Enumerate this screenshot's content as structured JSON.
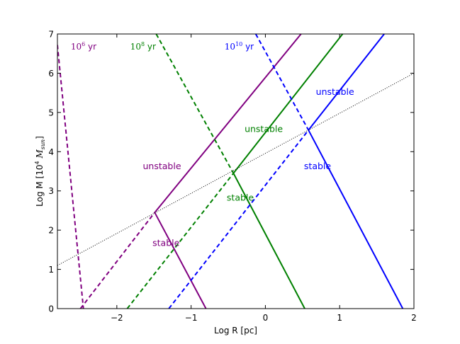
{
  "chart_data": {
    "type": "line",
    "xlabel": "Log R [pc]",
    "ylabel_prefix": "Log M [10",
    "ylabel_exp": "4",
    "ylabel_var": " M",
    "ylabel_sub": "sun",
    "ylabel_suffix": "]",
    "xlim": [
      -2.8,
      2.0
    ],
    "ylim": [
      0,
      7
    ],
    "xticks": [
      -2,
      -1,
      0,
      1,
      2
    ],
    "xtick_labels": [
      "−2",
      "−1",
      "0",
      "1",
      "2"
    ],
    "yticks": [
      0,
      1,
      2,
      3,
      4,
      5,
      6,
      7
    ],
    "ytick_labels": [
      "0",
      "1",
      "2",
      "3",
      "4",
      "5",
      "6",
      "7"
    ],
    "grid": false,
    "series": [
      {
        "group": "1e6",
        "style": "dashed",
        "color": "#800080",
        "x": [
          -2.8,
          -2.45
        ],
        "y": [
          6.72,
          0
        ]
      },
      {
        "group": "1e6",
        "style": "solid",
        "color": "#800080",
        "x": [
          -1.49,
          0.48
        ],
        "y": [
          2.45,
          7.0
        ]
      },
      {
        "group": "1e6",
        "style": "dashed",
        "color": "#800080",
        "x": [
          -2.49,
          -1.49
        ],
        "y": [
          0,
          2.45
        ]
      },
      {
        "group": "1e6",
        "style": "solid",
        "color": "#800080",
        "x": [
          -1.49,
          -0.8
        ],
        "y": [
          2.45,
          0
        ]
      },
      {
        "group": "1e8",
        "style": "dashed",
        "color": "#008000",
        "x": [
          -1.47,
          -0.43
        ],
        "y": [
          7.0,
          3.45
        ]
      },
      {
        "group": "1e8",
        "style": "solid",
        "color": "#008000",
        "x": [
          -0.43,
          1.04
        ],
        "y": [
          3.45,
          7.0
        ]
      },
      {
        "group": "1e8",
        "style": "dashed",
        "color": "#008000",
        "x": [
          -1.86,
          -0.43
        ],
        "y": [
          0,
          3.45
        ]
      },
      {
        "group": "1e8",
        "style": "solid",
        "color": "#008000",
        "x": [
          -0.43,
          0.53
        ],
        "y": [
          3.45,
          0
        ]
      },
      {
        "group": "1e10",
        "style": "dashed",
        "color": "#0000ff",
        "x": [
          -0.13,
          0.58
        ],
        "y": [
          7.0,
          4.55
        ]
      },
      {
        "group": "1e10",
        "style": "solid",
        "color": "#0000ff",
        "x": [
          0.58,
          1.6
        ],
        "y": [
          4.55,
          7.0
        ]
      },
      {
        "group": "1e10",
        "style": "dashed",
        "color": "#0000ff",
        "x": [
          -1.3,
          0.58
        ],
        "y": [
          0,
          4.55
        ]
      },
      {
        "group": "1e10",
        "style": "solid",
        "color": "#0000ff",
        "x": [
          0.58,
          1.85
        ],
        "y": [
          4.55,
          0
        ]
      },
      {
        "group": "reference",
        "style": "dotted",
        "color": "#000000",
        "x": [
          -2.8,
          2.0
        ],
        "y": [
          1.1,
          6.0
        ]
      }
    ],
    "annotations": [
      {
        "group": "1e6",
        "text": "unstable",
        "x": -1.65,
        "y": 3.55,
        "color": "#800080"
      },
      {
        "group": "1e6",
        "text": "stable",
        "x": -1.52,
        "y": 1.6,
        "color": "#800080"
      },
      {
        "group": "1e8",
        "text": "unstable",
        "x": -0.28,
        "y": 4.5,
        "color": "#008000"
      },
      {
        "group": "1e8",
        "text": "stable",
        "x": -0.52,
        "y": 2.75,
        "color": "#008000"
      },
      {
        "group": "1e10",
        "text": "unstable",
        "x": 0.68,
        "y": 5.45,
        "color": "#0000ff"
      },
      {
        "group": "1e10",
        "text": "stable",
        "x": 0.52,
        "y": 3.55,
        "color": "#0000ff"
      }
    ],
    "time_labels": [
      {
        "base": "10",
        "exp": "6",
        "unit": " yr",
        "x": -2.62,
        "y": 6.6,
        "color": "#800080"
      },
      {
        "base": "10",
        "exp": "8",
        "unit": " yr",
        "x": -1.82,
        "y": 6.6,
        "color": "#008000"
      },
      {
        "base": "10",
        "exp": "10",
        "unit": " yr",
        "x": -0.55,
        "y": 6.6,
        "color": "#0000ff"
      }
    ]
  }
}
